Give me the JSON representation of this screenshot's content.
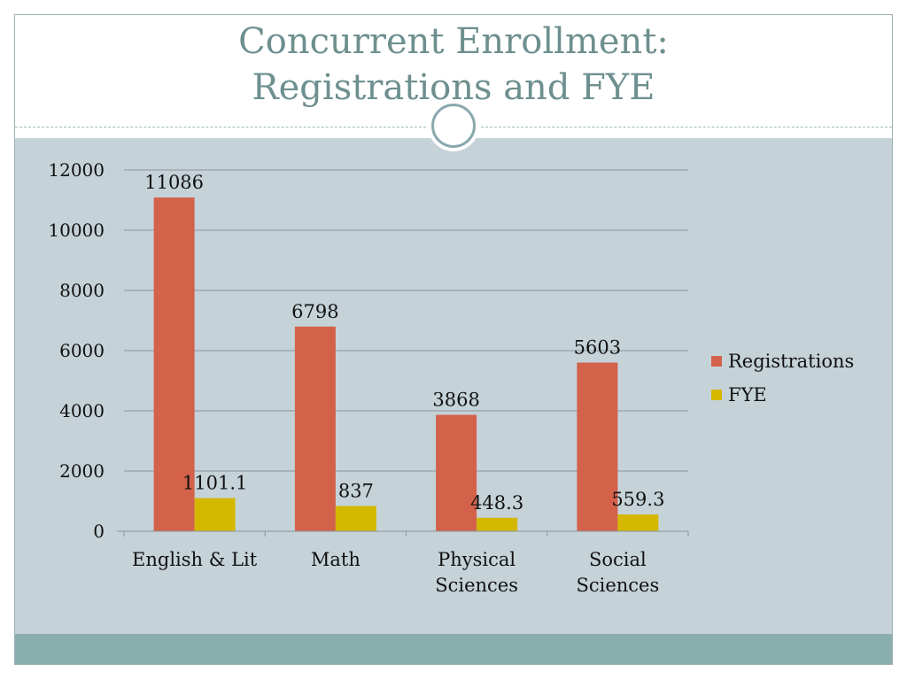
{
  "slide": {
    "title_line1": "Concurrent Enrollment:",
    "title_line2": "Registrations and FYE"
  },
  "colors": {
    "registrations": "#d4614a",
    "fye": "#d4b800",
    "background_panel": "#c5d2d8",
    "title": "#6e8f8f",
    "footer": "#8aadae"
  },
  "chart_data": {
    "type": "bar",
    "title": "",
    "xlabel": "",
    "ylabel": "",
    "categories": [
      [
        "English & Lit"
      ],
      [
        "Math"
      ],
      [
        "Physical",
        "Sciences"
      ],
      [
        "Social",
        "Sciences"
      ]
    ],
    "series": [
      {
        "name": "Registrations",
        "values": [
          11086,
          6798,
          3868,
          5603
        ],
        "labels": [
          "11086",
          "6798",
          "3868",
          "5603"
        ]
      },
      {
        "name": "FYE",
        "values": [
          1101.1,
          837,
          448.3,
          559.3
        ],
        "labels": [
          "1101.1",
          "837",
          "448.3",
          "559.3"
        ]
      }
    ],
    "ylim": [
      0,
      12000
    ],
    "yticks": [
      0,
      2000,
      4000,
      6000,
      8000,
      10000,
      12000
    ],
    "ytick_labels": [
      "0",
      "2000",
      "4000",
      "6000",
      "8000",
      "10000",
      "12000"
    ],
    "grid": true,
    "legend_position": "right"
  }
}
